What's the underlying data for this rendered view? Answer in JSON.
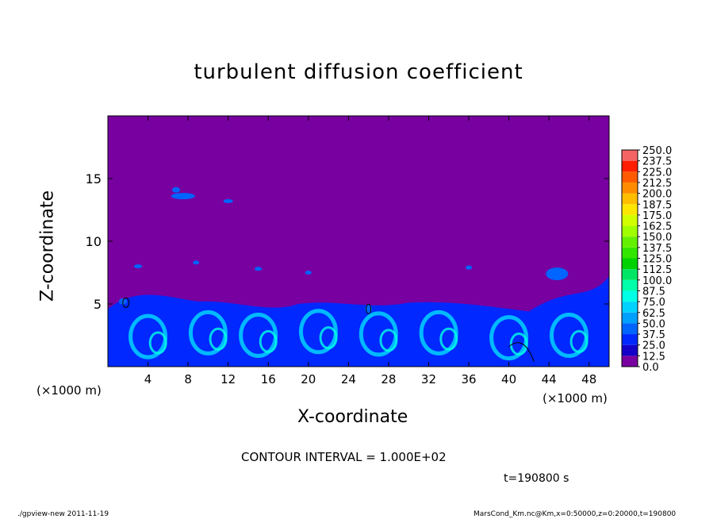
{
  "chart_data": {
    "type": "heatmap",
    "title": "turbulent diffusion coefficient",
    "xlabel": "X-coordinate",
    "ylabel": "Z-coordinate",
    "x_unit_label": "(×1000 m)",
    "x_unit_label_right": "(×1000 m)",
    "xlim": [
      0,
      50
    ],
    "ylim": [
      0,
      20
    ],
    "xticks": [
      "4",
      "8",
      "12",
      "16",
      "20",
      "24",
      "28",
      "32",
      "36",
      "40",
      "44",
      "48"
    ],
    "yticks": [
      "5",
      "10",
      "15"
    ],
    "colorbar": {
      "levels": [
        "0.0",
        "12.5",
        "25.0",
        "37.5",
        "50.0",
        "62.5",
        "75.0",
        "87.5",
        "100.0",
        "112.5",
        "125.0",
        "137.5",
        "150.0",
        "162.5",
        "175.0",
        "187.5",
        "200.0",
        "212.5",
        "225.0",
        "237.5",
        "250.0"
      ],
      "colors": [
        "#7800a0",
        "#1400c8",
        "#0028ff",
        "#0064ff",
        "#00a0ff",
        "#00d2ff",
        "#00ffe6",
        "#00ffaa",
        "#00e664",
        "#00d200",
        "#32e600",
        "#64f000",
        "#a0ff00",
        "#d2ff00",
        "#ffe600",
        "#ffbe00",
        "#ff8c00",
        "#ff5a00",
        "#ff1e00",
        "#f56464"
      ]
    },
    "background_value_color": "#7800a0",
    "contour_interval_text": "CONTOUR INTERVAL = 1.000E+02",
    "time_text": "t=190800 s"
  },
  "footer": {
    "left": "./gpview-new   2011-11-19",
    "right": "MarsCond_Km.nc@Km,x=0:50000,z=0:20000,t=190800"
  }
}
